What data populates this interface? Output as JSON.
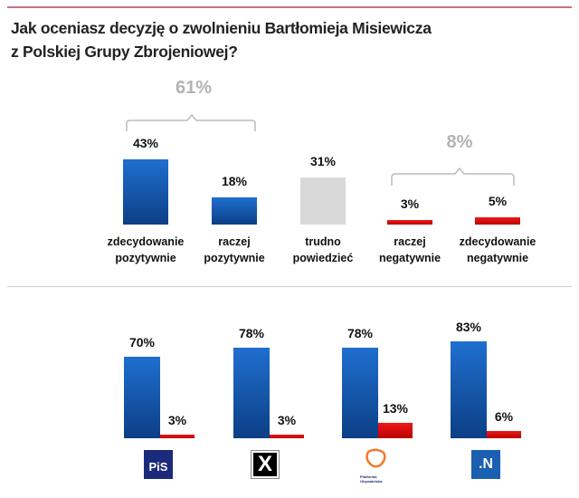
{
  "title_line1": "Jak oceniasz decyzję o zwolnieniu Bartłomieja Misiewicza",
  "title_line2": "z Polskiej Grupy Zbrojeniowej?",
  "chart_data": [
    {
      "type": "bar",
      "categories": [
        "zdecydowanie pozytywnie",
        "raczej pozytywnie",
        "trudno powiedzieć",
        "raczej negatywnie",
        "zdecydowanie negatywnie"
      ],
      "values": [
        43,
        18,
        31,
        3,
        5
      ],
      "labels": [
        "43%",
        "18%",
        "31%",
        "3%",
        "5%"
      ],
      "colors": [
        "#1565c0",
        "#1565c0",
        "#d9d9d9",
        "#e00000",
        "#e00000"
      ],
      "annotations": [
        {
          "text": "61%",
          "spans": [
            0,
            1
          ]
        },
        {
          "text": "8%",
          "spans": [
            3,
            4
          ]
        }
      ],
      "ylim": [
        0,
        100
      ]
    },
    {
      "type": "bar",
      "categories": [
        "PiS",
        "Kukiz'15",
        "Platforma Obywatelska",
        ".N"
      ],
      "series": [
        {
          "values": [
            70,
            78,
            78,
            83
          ],
          "labels": [
            "70%",
            "78%",
            "78%",
            "83%"
          ],
          "color": "#1565c0"
        },
        {
          "values": [
            3,
            3,
            13,
            6
          ],
          "labels": [
            "3%",
            "3%",
            "13%",
            "6%"
          ],
          "color": "#e00000"
        }
      ],
      "ylim": [
        0,
        100
      ]
    }
  ],
  "logos": {
    "pis": "PiS",
    "kukiz": "X",
    "po": "Platforma Obywatelska",
    "n": ".N"
  }
}
